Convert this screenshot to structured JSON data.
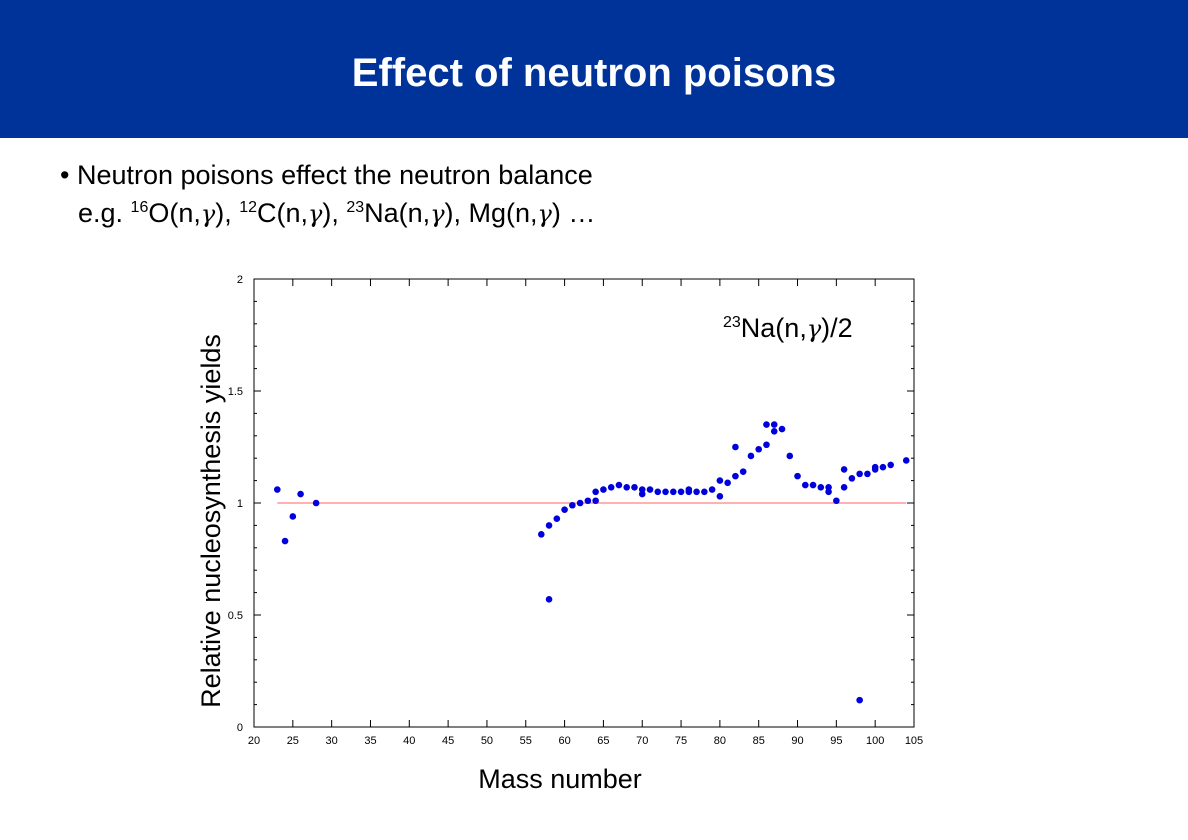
{
  "header": {
    "title": "Effect of neutron poisons"
  },
  "bullets": {
    "line1": "• Neutron poisons effect the neutron balance",
    "line2_parts": [
      {
        "t": "e.g. "
      },
      {
        "sup": "16"
      },
      {
        "t": "O(n,"
      },
      {
        "sym": "γ"
      },
      {
        "t": "), "
      },
      {
        "sup": "12"
      },
      {
        "t": "C(n,"
      },
      {
        "sym": "γ"
      },
      {
        "t": "), "
      },
      {
        "sup": "23"
      },
      {
        "t": "Na(n,"
      },
      {
        "sym": "γ"
      },
      {
        "t": "), Mg(n,"
      },
      {
        "sym": "γ"
      },
      {
        "t": ") …"
      }
    ]
  },
  "chart_data": {
    "type": "scatter",
    "xlabel": "Mass number",
    "ylabel": "Relative nucleosynthesis yields",
    "annotation": {
      "sup": "23",
      "text1": "Na(n,",
      "sym": "γ",
      "text2": ")/2"
    },
    "xlim": [
      20,
      105
    ],
    "ylim": [
      0,
      2
    ],
    "xticks": [
      "20",
      "25",
      "30",
      "35",
      "40",
      "45",
      "50",
      "55",
      "60",
      "65",
      "70",
      "75",
      "80",
      "85",
      "90",
      "95",
      "100",
      "105"
    ],
    "yticks": [
      "0",
      "0.5",
      "1",
      "1.5",
      "2"
    ],
    "reference_line": {
      "y": 1,
      "x_range": [
        23,
        104
      ],
      "color": "#ff8080"
    },
    "marker_color": "#0000dd",
    "points": [
      [
        23,
        1.06
      ],
      [
        24,
        0.83
      ],
      [
        25,
        0.94
      ],
      [
        26,
        1.04
      ],
      [
        28,
        1.0
      ],
      [
        57,
        0.86
      ],
      [
        58,
        0.57
      ],
      [
        58,
        0.9
      ],
      [
        59,
        0.93
      ],
      [
        60,
        0.97
      ],
      [
        61,
        0.99
      ],
      [
        62,
        1.0
      ],
      [
        63,
        1.01
      ],
      [
        64,
        1.01
      ],
      [
        64,
        1.05
      ],
      [
        65,
        1.06
      ],
      [
        66,
        1.07
      ],
      [
        67,
        1.08
      ],
      [
        68,
        1.07
      ],
      [
        69,
        1.07
      ],
      [
        70,
        1.04
      ],
      [
        70,
        1.06
      ],
      [
        71,
        1.06
      ],
      [
        72,
        1.05
      ],
      [
        73,
        1.05
      ],
      [
        74,
        1.05
      ],
      [
        75,
        1.05
      ],
      [
        76,
        1.06
      ],
      [
        76,
        1.05
      ],
      [
        77,
        1.05
      ],
      [
        78,
        1.05
      ],
      [
        79,
        1.06
      ],
      [
        80,
        1.03
      ],
      [
        80,
        1.1
      ],
      [
        81,
        1.09
      ],
      [
        82,
        1.25
      ],
      [
        82,
        1.12
      ],
      [
        83,
        1.14
      ],
      [
        84,
        1.21
      ],
      [
        85,
        1.24
      ],
      [
        86,
        1.35
      ],
      [
        86,
        1.26
      ],
      [
        87,
        1.35
      ],
      [
        87,
        1.32
      ],
      [
        88,
        1.33
      ],
      [
        89,
        1.21
      ],
      [
        90,
        1.12
      ],
      [
        91,
        1.08
      ],
      [
        92,
        1.08
      ],
      [
        93,
        1.07
      ],
      [
        94,
        1.07
      ],
      [
        94,
        1.05
      ],
      [
        95,
        1.01
      ],
      [
        96,
        1.07
      ],
      [
        96,
        1.15
      ],
      [
        97,
        1.11
      ],
      [
        98,
        0.12
      ],
      [
        98,
        1.13
      ],
      [
        99,
        1.13
      ],
      [
        100,
        1.15
      ],
      [
        100,
        1.16
      ],
      [
        101,
        1.16
      ],
      [
        102,
        1.17
      ],
      [
        104,
        1.19
      ]
    ]
  }
}
